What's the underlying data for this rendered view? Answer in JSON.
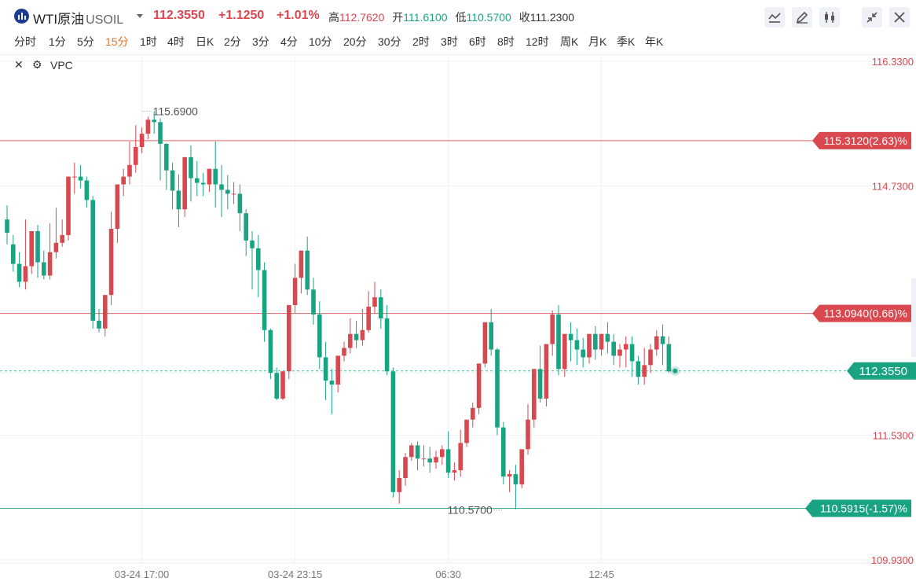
{
  "header": {
    "name": "WTI原油",
    "symbol": "USOIL",
    "price": "112.3550",
    "change": "+1.1250",
    "change_pct": "+1.01%",
    "high_label": "高",
    "high": "112.7620",
    "open_label": "开",
    "open": "111.6100",
    "low_label": "低",
    "low": "110.5700",
    "close_label": "收",
    "close": "111.2300"
  },
  "toolbar": {
    "icons": [
      "indicator-icon",
      "draw-pen-icon",
      "candle-type-icon",
      "collapse-icon",
      "close-icon"
    ]
  },
  "timeframes": [
    "分时",
    "1分",
    "5分",
    "15分",
    "1时",
    "4时",
    "日K",
    "2分",
    "3分",
    "4分",
    "10分",
    "20分",
    "30分",
    "2时",
    "3时",
    "6时",
    "8时",
    "12时",
    "周K",
    "月K",
    "季K",
    "年K"
  ],
  "active_timeframe": "15分",
  "indicator": {
    "name": "VPC"
  },
  "colors": {
    "up": "#d9474f",
    "down": "#1aa383",
    "accent": "#e8742b",
    "price_line": "#1aa383"
  },
  "chart_data": {
    "type": "candlestick",
    "ylim": [
      109.93,
      116.33
    ],
    "y_ticks": [
      "116.3300",
      "114.7300",
      "111.5300",
      "109.9300"
    ],
    "x_ticks": [
      "03-24 17:00",
      "03-24 23:15",
      "06:30",
      "12:45"
    ],
    "x_tick_bars": [
      22,
      47,
      72,
      97
    ],
    "high_marker": {
      "value": "115.6900",
      "bar": 22
    },
    "low_marker": {
      "value": "110.5700",
      "bar": 81
    },
    "h_lines": [
      {
        "label": "115.3120(2.63)%",
        "value": 115.312,
        "kind": "up"
      },
      {
        "label": "113.0940(0.66)%",
        "value": 113.094,
        "kind": "up"
      },
      {
        "label": "110.5915(-1.57)%",
        "value": 110.5915,
        "kind": "down"
      }
    ],
    "current": {
      "label": "112.3550",
      "value": 112.355
    },
    "candles": [
      [
        114.3,
        114.48,
        114.13,
        113.98
      ],
      [
        113.98,
        114.1,
        113.73,
        113.63
      ],
      [
        113.73,
        113.88,
        113.5,
        113.43
      ],
      [
        113.5,
        114.3,
        113.7,
        113.4
      ],
      [
        113.7,
        113.9,
        114.15,
        113.6
      ],
      [
        114.15,
        114.23,
        113.75,
        113.55
      ],
      [
        113.75,
        113.9,
        113.58,
        113.53
      ],
      [
        113.58,
        114.25,
        113.88,
        113.53
      ],
      [
        113.88,
        114.45,
        114.0,
        113.8
      ],
      [
        114.0,
        114.3,
        114.1,
        113.95
      ],
      [
        114.1,
        114.6,
        114.85,
        114.03
      ],
      [
        114.85,
        115.03,
        114.85,
        114.63
      ],
      [
        114.85,
        115.0,
        114.8,
        114.7
      ],
      [
        114.8,
        114.85,
        114.55,
        114.45
      ],
      [
        114.55,
        114.6,
        113.0,
        112.9
      ],
      [
        113.0,
        113.15,
        112.9,
        112.85
      ],
      [
        112.9,
        113.25,
        113.33,
        112.8
      ],
      [
        113.33,
        114.4,
        114.18,
        113.2
      ],
      [
        114.18,
        114.7,
        114.75,
        114.0
      ],
      [
        114.75,
        114.95,
        114.85,
        114.6
      ],
      [
        114.85,
        115.3,
        115.0,
        114.75
      ],
      [
        115.0,
        115.51,
        115.23,
        114.9
      ],
      [
        115.23,
        115.48,
        115.4,
        115.15
      ],
      [
        115.4,
        115.62,
        115.58,
        115.33
      ],
      [
        115.58,
        115.69,
        115.55,
        115.4
      ],
      [
        115.55,
        115.6,
        115.27,
        114.8
      ],
      [
        115.27,
        115.28,
        114.93,
        114.68
      ],
      [
        114.93,
        115.03,
        114.67,
        114.43
      ],
      [
        114.67,
        114.88,
        114.43,
        114.2
      ],
      [
        114.43,
        114.73,
        115.1,
        114.33
      ],
      [
        115.1,
        115.25,
        114.83,
        114.53
      ],
      [
        114.83,
        115.05,
        114.77,
        114.6
      ],
      [
        114.77,
        114.9,
        114.75,
        114.6
      ],
      [
        114.75,
        114.92,
        114.95,
        114.65
      ],
      [
        114.95,
        115.3,
        114.75,
        114.45
      ],
      [
        114.75,
        115.0,
        114.68,
        114.33
      ],
      [
        114.68,
        114.87,
        114.63,
        114.43
      ],
      [
        114.63,
        114.78,
        114.63,
        114.5
      ],
      [
        114.63,
        114.75,
        114.38,
        114.15
      ],
      [
        114.38,
        114.43,
        114.03,
        113.83
      ],
      [
        114.03,
        114.15,
        113.93,
        113.4
      ],
      [
        113.93,
        114.1,
        113.65,
        113.3
      ],
      [
        113.65,
        113.75,
        112.88,
        112.73
      ],
      [
        112.88,
        112.9,
        112.33,
        112.25
      ],
      [
        112.33,
        112.4,
        112.0,
        111.98
      ],
      [
        112.0,
        112.15,
        112.35,
        111.98
      ],
      [
        112.35,
        112.7,
        113.2,
        112.25
      ],
      [
        113.2,
        113.73,
        113.55,
        113.1
      ],
      [
        113.55,
        113.85,
        113.9,
        113.35
      ],
      [
        113.9,
        114.08,
        113.4,
        113.33
      ],
      [
        113.4,
        113.55,
        113.08,
        112.95
      ],
      [
        113.08,
        113.25,
        112.53,
        112.38
      ],
      [
        112.53,
        112.73,
        112.23,
        111.98
      ],
      [
        112.23,
        112.38,
        112.18,
        111.8
      ],
      [
        112.18,
        112.5,
        112.55,
        112.08
      ],
      [
        112.55,
        112.73,
        112.65,
        112.48
      ],
      [
        112.65,
        113.03,
        112.83,
        112.58
      ],
      [
        112.83,
        113.0,
        112.75,
        112.65
      ],
      [
        112.75,
        113.15,
        112.88,
        112.68
      ],
      [
        112.88,
        113.38,
        113.18,
        112.85
      ],
      [
        113.18,
        113.5,
        113.3,
        113.1
      ],
      [
        113.3,
        113.4,
        113.03,
        112.9
      ],
      [
        113.03,
        113.2,
        112.35,
        112.3
      ],
      [
        112.35,
        112.4,
        110.8,
        110.73
      ],
      [
        110.8,
        111.08,
        110.98,
        110.65
      ],
      [
        110.98,
        111.3,
        111.25,
        110.88
      ],
      [
        111.25,
        111.43,
        111.4,
        111.2
      ],
      [
        111.4,
        111.45,
        111.23,
        111.08
      ],
      [
        111.23,
        111.4,
        111.23,
        111.13
      ],
      [
        111.23,
        111.38,
        111.18,
        111.05
      ],
      [
        111.18,
        111.33,
        111.25,
        111.1
      ],
      [
        111.25,
        111.4,
        111.35,
        111.15
      ],
      [
        111.35,
        111.58,
        111.05,
        110.98
      ],
      [
        111.05,
        111.18,
        111.08,
        110.95
      ],
      [
        111.08,
        111.6,
        111.43,
        111.0
      ],
      [
        111.43,
        111.73,
        111.73,
        111.38
      ],
      [
        111.73,
        111.95,
        111.88,
        111.63
      ],
      [
        111.88,
        112.2,
        112.45,
        111.8
      ],
      [
        112.45,
        112.65,
        112.98,
        112.4
      ],
      [
        112.98,
        113.15,
        112.63,
        112.55
      ],
      [
        112.63,
        112.65,
        111.63,
        111.53
      ],
      [
        111.63,
        111.7,
        111.0,
        110.9
      ],
      [
        111.0,
        111.08,
        111.03,
        110.8
      ],
      [
        111.03,
        111.15,
        110.9,
        110.58
      ],
      [
        110.9,
        111.2,
        111.35,
        110.85
      ],
      [
        111.35,
        111.93,
        111.73,
        111.28
      ],
      [
        111.73,
        112.08,
        112.38,
        111.63
      ],
      [
        112.38,
        112.68,
        112.0,
        111.95
      ],
      [
        112.0,
        112.5,
        112.7,
        111.9
      ],
      [
        112.7,
        113.13,
        113.08,
        112.55
      ],
      [
        113.08,
        113.2,
        112.38,
        112.3
      ],
      [
        112.38,
        112.75,
        112.83,
        112.28
      ],
      [
        112.83,
        112.98,
        112.75,
        112.48
      ],
      [
        112.75,
        112.9,
        112.63,
        112.43
      ],
      [
        112.63,
        112.78,
        112.53,
        112.4
      ],
      [
        112.53,
        112.7,
        112.83,
        112.45
      ],
      [
        112.83,
        112.93,
        112.63,
        112.5
      ],
      [
        112.63,
        112.73,
        112.83,
        112.55
      ],
      [
        112.83,
        112.98,
        112.73,
        112.58
      ],
      [
        112.73,
        112.83,
        112.55,
        112.43
      ],
      [
        112.55,
        112.7,
        112.63,
        112.4
      ],
      [
        112.63,
        112.8,
        112.7,
        112.4
      ],
      [
        112.7,
        112.8,
        112.48,
        112.28
      ],
      [
        112.48,
        112.55,
        112.28,
        112.18
      ],
      [
        112.28,
        112.65,
        112.43,
        112.18
      ],
      [
        112.43,
        112.7,
        112.63,
        112.33
      ],
      [
        112.63,
        112.88,
        112.8,
        112.55
      ],
      [
        112.8,
        112.95,
        112.7,
        112.43
      ],
      [
        112.7,
        112.8,
        112.35,
        112.33
      ]
    ]
  }
}
